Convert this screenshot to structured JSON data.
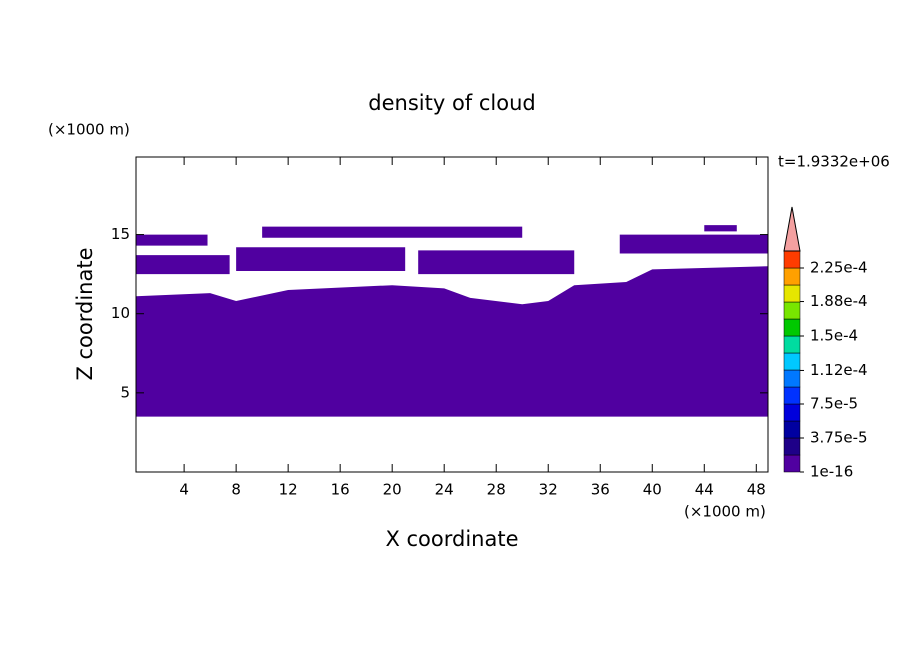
{
  "chart_data": {
    "type": "contour",
    "title": "density of cloud",
    "xlabel": "X coordinate",
    "ylabel": "Z coordinate",
    "xunit": "(×1000 m)",
    "yunit": "(×1000 m)",
    "annotation": "t=1.9332e+06",
    "xlim": [
      0.3,
      48.9
    ],
    "ylim": [
      0,
      19.9
    ],
    "xticks": [
      4,
      8,
      12,
      16,
      20,
      24,
      28,
      32,
      36,
      40,
      44,
      48
    ],
    "yticks": [
      5,
      10,
      15
    ],
    "fill_color": "#5000a0",
    "regions": [
      {
        "x": [
          0.3,
          48.9,
          48.9,
          40,
          38,
          34,
          32,
          30,
          26,
          24,
          20,
          12,
          8,
          6,
          0.3
        ],
        "z": [
          3.5,
          3.5,
          13,
          12.8,
          12,
          11.8,
          10.8,
          10.6,
          11,
          11.6,
          11.8,
          11.5,
          10.8,
          11.3,
          11.1
        ]
      },
      {
        "x": [
          0.3,
          5.8,
          5.8,
          0.3
        ],
        "z": [
          14.3,
          14.3,
          15,
          15
        ]
      },
      {
        "x": [
          0.3,
          7.5,
          7.5,
          0.3
        ],
        "z": [
          12.5,
          12.5,
          13.7,
          13.7
        ]
      },
      {
        "x": [
          8,
          21,
          21,
          8
        ],
        "z": [
          12.7,
          12.7,
          14.2,
          14.2
        ]
      },
      {
        "x": [
          10,
          30,
          30,
          10
        ],
        "z": [
          14.8,
          14.8,
          15.5,
          15.5
        ]
      },
      {
        "x": [
          22,
          34,
          34,
          22
        ],
        "z": [
          12.5,
          12.5,
          14,
          14
        ]
      },
      {
        "x": [
          37.5,
          48.9,
          48.9,
          37.5
        ],
        "z": [
          13.8,
          13.8,
          15,
          15
        ]
      },
      {
        "x": [
          44,
          46.5,
          46.5,
          44
        ],
        "z": [
          15.2,
          15.2,
          15.6,
          15.6
        ]
      }
    ],
    "colorbar": {
      "ticks": [
        {
          "value": 1e-16,
          "label": "1e-16"
        },
        {
          "value": 3.75e-05,
          "label": "3.75e-5"
        },
        {
          "value": 7.5e-05,
          "label": "7.5e-5"
        },
        {
          "value": 0.000112,
          "label": "1.12e-4"
        },
        {
          "value": 0.00015,
          "label": "1.5e-4"
        },
        {
          "value": 0.000188,
          "label": "1.88e-4"
        },
        {
          "value": 0.000225,
          "label": "2.25e-4"
        }
      ],
      "colors": [
        "#5000a0",
        "#1e0088",
        "#0000a0",
        "#0000dc",
        "#0032ff",
        "#0078ff",
        "#00c8ff",
        "#00dca0",
        "#00c800",
        "#78e600",
        "#e6e600",
        "#ffa000",
        "#ff3c00"
      ],
      "extend_color": "#f4a0a0"
    }
  }
}
